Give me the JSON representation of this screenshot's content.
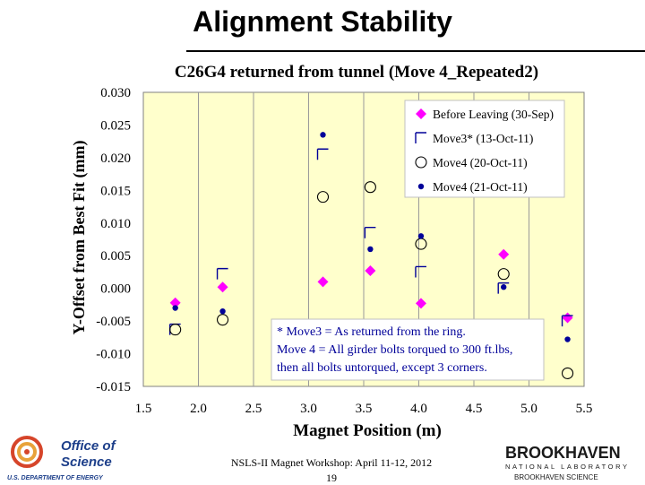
{
  "slide": {
    "title": "Alignment Stability",
    "footer_text": "NSLS-II Magnet Workshop: April 11-12, 2012",
    "page_number": "19",
    "left_logo": {
      "line1": "Office of",
      "line2": "Science",
      "line3": "U.S. DEPARTMENT OF ENERGY"
    },
    "right_logo": {
      "line1": "BROOKHAVEN",
      "line2": "NATIONAL LABORATORY",
      "line3": "BROOKHAVEN SCIENCE"
    }
  },
  "chart_data": {
    "type": "scatter",
    "title": "C26G4 returned from tunnel (Move 4_Repeated2)",
    "xlabel": "Magnet Position (m)",
    "ylabel": "Y-Offset from Best Fit (mm)",
    "xlim": [
      1.5,
      5.5
    ],
    "ylim": [
      -0.015,
      0.03
    ],
    "xticks": [
      "1.5",
      "2.0",
      "2.5",
      "3.0",
      "3.5",
      "4.0",
      "4.5",
      "5.0",
      "5.5"
    ],
    "yticks": [
      "0.030",
      "0.025",
      "0.020",
      "0.015",
      "0.010",
      "0.005",
      "0.000",
      "-0.005",
      "-0.010",
      "-0.015"
    ],
    "grid": "vertical",
    "legend_position": "top-right",
    "colors": {
      "plot_background": "#ffffcc",
      "magenta": "#ff00ff",
      "navy": "#000099",
      "black": "#000000"
    },
    "series": [
      {
        "name": "Before Leaving (30-Sep)",
        "marker": "diamond",
        "color": "#ff00ff",
        "x": [
          1.79,
          2.22,
          3.13,
          3.56,
          4.02,
          4.77,
          5.35
        ],
        "y": [
          -0.0022,
          0.0002,
          0.001,
          0.0027,
          -0.0023,
          0.0052,
          -0.0045
        ]
      },
      {
        "name": "Move3* (13-Oct-11)",
        "marker": "square",
        "color": "#000099",
        "x": [
          1.79,
          2.22,
          3.13,
          3.56,
          4.02,
          4.77,
          5.35
        ],
        "y": [
          -0.0063,
          0.0022,
          0.0205,
          0.0085,
          0.0025,
          0.0,
          -0.005
        ]
      },
      {
        "name": "Move4 (20-Oct-11)",
        "marker": "circle",
        "color": "#000000",
        "x": [
          1.79,
          2.22,
          3.13,
          3.56,
          4.02,
          4.77,
          5.35
        ],
        "y": [
          -0.0063,
          -0.0048,
          0.014,
          0.0155,
          0.0068,
          0.0022,
          -0.013
        ]
      },
      {
        "name": "Move4 (21-Oct-11)",
        "marker": "dot",
        "color": "#000099",
        "x": [
          1.79,
          2.22,
          3.13,
          3.56,
          4.02,
          4.77,
          5.35
        ],
        "y": [
          -0.003,
          -0.0035,
          0.0235,
          0.006,
          0.008,
          0.0002,
          -0.0078
        ]
      }
    ],
    "annotation": {
      "lines": [
        "* Move3 = As returned from the ring.",
        "Move 4 = All girder bolts torqued to 300 ft.lbs,",
        "then all bolts untorqued, except 3 corners."
      ]
    }
  }
}
